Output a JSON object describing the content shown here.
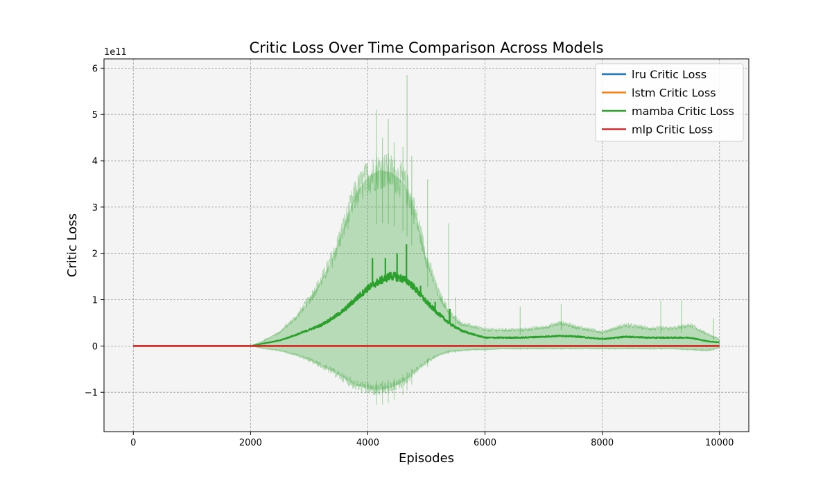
{
  "chart_data": {
    "type": "line",
    "title": "Critic Loss Over Time Comparison Across Models",
    "xlabel": "Episodes",
    "ylabel": "Critic Loss",
    "y_scale_label": "1e11",
    "xlim": [
      -500,
      10500
    ],
    "ylim": [
      -1.85,
      6.2
    ],
    "x_ticks": [
      0,
      2000,
      4000,
      6000,
      8000,
      10000
    ],
    "x_tick_labels": [
      "0",
      "2000",
      "4000",
      "6000",
      "8000",
      "10000"
    ],
    "y_ticks": [
      -1,
      0,
      1,
      2,
      3,
      4,
      5,
      6
    ],
    "y_tick_labels": [
      "−1",
      "0",
      "1",
      "2",
      "3",
      "4",
      "5",
      "6"
    ],
    "grid": true,
    "legend_position": "top-right",
    "background": "#f4f4f4",
    "series": [
      {
        "name": "lru Critic Loss",
        "color": "#1f77b4",
        "x": [
          0,
          2000,
          4000,
          6000,
          8000,
          10000
        ],
        "y": [
          0,
          0,
          0,
          0,
          0,
          0
        ]
      },
      {
        "name": "lstm Critic Loss",
        "color": "#ff7f0e",
        "x": [
          0,
          2000,
          4000,
          6000,
          8000,
          10000
        ],
        "y": [
          0,
          0,
          0,
          0,
          0,
          0
        ]
      },
      {
        "name": "mamba Critic Loss",
        "color": "#2ca02c",
        "x": [
          0,
          2000,
          2200,
          2500,
          2800,
          3000,
          3200,
          3400,
          3600,
          3800,
          4000,
          4200,
          4400,
          4600,
          4700,
          4800,
          5000,
          5200,
          5400,
          5600,
          5800,
          6000,
          6300,
          6600,
          7000,
          7300,
          7600,
          8000,
          8400,
          8800,
          9200,
          9500,
          9800,
          10000
        ],
        "y": [
          0,
          0,
          0.05,
          0.12,
          0.25,
          0.35,
          0.45,
          0.6,
          0.78,
          1.02,
          1.25,
          1.4,
          1.52,
          1.45,
          1.38,
          1.25,
          0.95,
          0.7,
          0.48,
          0.33,
          0.25,
          0.18,
          0.18,
          0.18,
          0.2,
          0.22,
          0.2,
          0.15,
          0.2,
          0.18,
          0.18,
          0.18,
          0.1,
          0.08
        ],
        "band_upper": [
          0,
          0,
          0.1,
          0.3,
          0.65,
          1.0,
          1.4,
          1.9,
          2.6,
          3.3,
          3.65,
          3.8,
          3.75,
          3.55,
          3.3,
          2.9,
          1.9,
          1.15,
          0.7,
          0.48,
          0.42,
          0.35,
          0.35,
          0.35,
          0.4,
          0.5,
          0.4,
          0.3,
          0.45,
          0.38,
          0.38,
          0.45,
          0.25,
          0.15
        ],
        "band_lower": [
          0,
          0,
          -0.05,
          -0.1,
          -0.2,
          -0.3,
          -0.42,
          -0.55,
          -0.7,
          -0.85,
          -0.92,
          -0.95,
          -0.9,
          -0.78,
          -0.68,
          -0.55,
          -0.35,
          -0.2,
          -0.12,
          -0.1,
          -0.08,
          -0.08,
          -0.06,
          -0.06,
          -0.06,
          -0.06,
          -0.06,
          -0.06,
          -0.06,
          -0.06,
          -0.06,
          -0.08,
          -0.1,
          -0.04
        ],
        "band_color": "#2ca02c",
        "spikes": [
          {
            "x": 4150,
            "y": 5.1
          },
          {
            "x": 4250,
            "y": 4.5
          },
          {
            "x": 4350,
            "y": 4.9
          },
          {
            "x": 4450,
            "y": 4.4
          },
          {
            "x": 4600,
            "y": 4.3
          },
          {
            "x": 4670,
            "y": 5.85
          },
          {
            "x": 4750,
            "y": 4.1
          },
          {
            "x": 5020,
            "y": 3.6
          },
          {
            "x": 5380,
            "y": 2.65
          },
          {
            "x": 5500,
            "y": 1.05
          },
          {
            "x": 6600,
            "y": 0.85
          },
          {
            "x": 7300,
            "y": 0.9
          },
          {
            "x": 9000,
            "y": 0.98
          },
          {
            "x": 9350,
            "y": 0.98
          },
          {
            "x": 9900,
            "y": 0.6
          }
        ],
        "line_spikes": [
          {
            "x": 4080,
            "y": 1.9
          },
          {
            "x": 4300,
            "y": 1.9
          },
          {
            "x": 4500,
            "y": 2.0
          },
          {
            "x": 4660,
            "y": 2.2
          },
          {
            "x": 4900,
            "y": 1.3
          },
          {
            "x": 5150,
            "y": 0.95
          },
          {
            "x": 5400,
            "y": 0.8
          }
        ]
      },
      {
        "name": "mlp Critic Loss",
        "color": "#d62728",
        "x": [
          0,
          2000,
          4000,
          6000,
          8000,
          10000
        ],
        "y": [
          0,
          0,
          0,
          0,
          0,
          0
        ]
      }
    ]
  }
}
